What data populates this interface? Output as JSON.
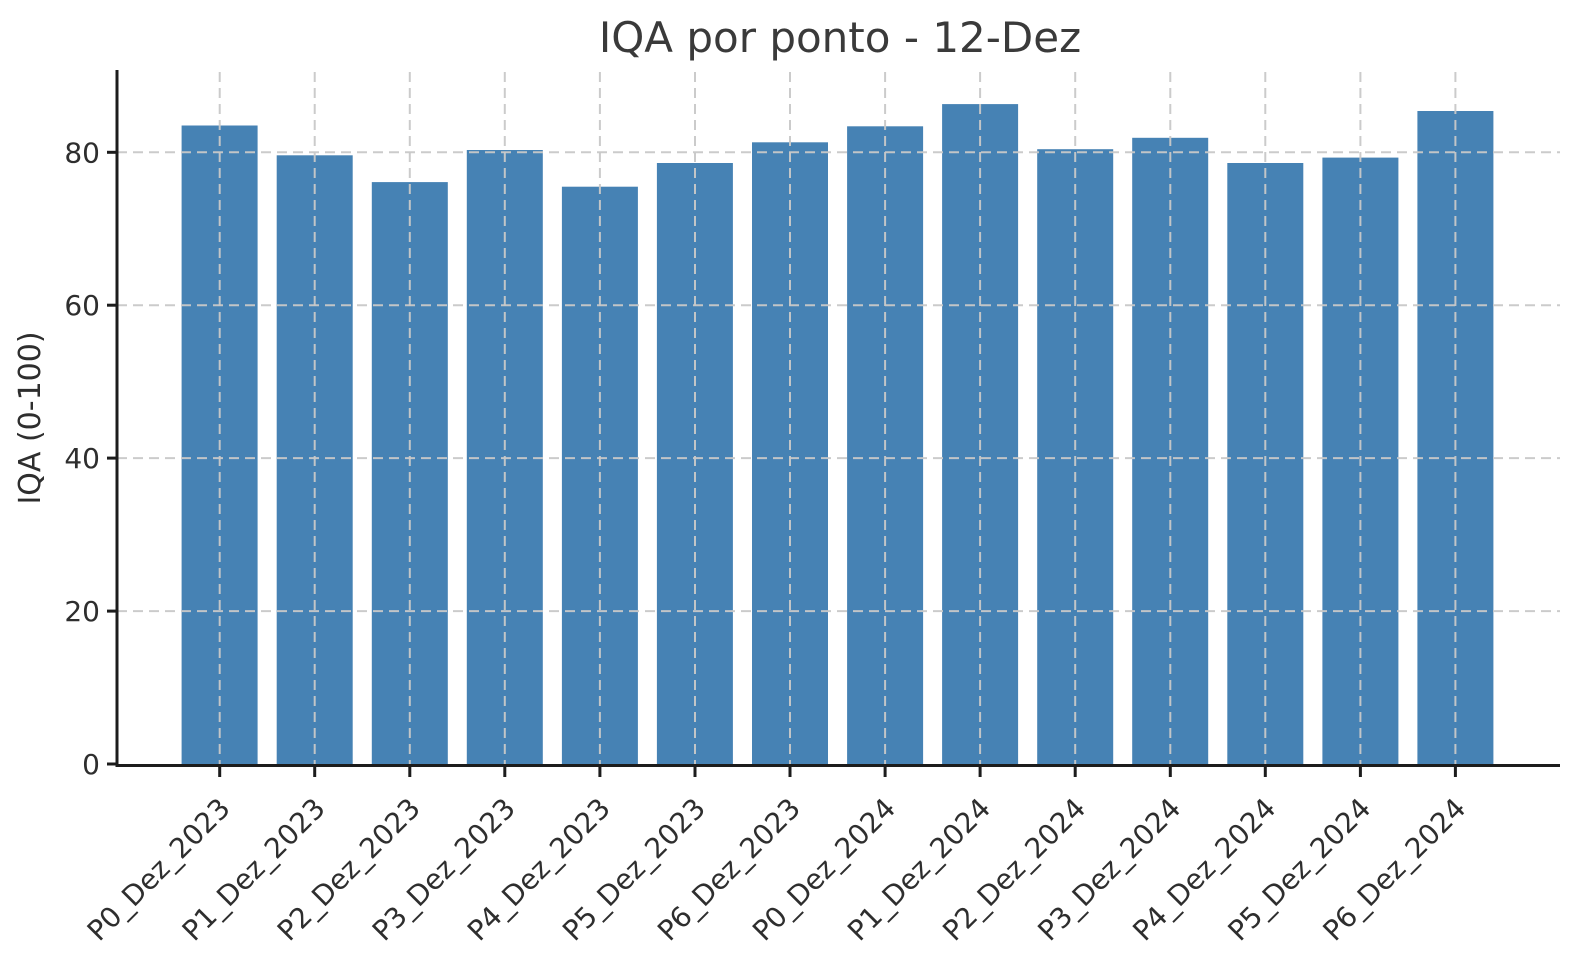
{
  "chart_data": {
    "type": "bar",
    "title": "IQA por ponto - 12-Dez",
    "xlabel": "",
    "ylabel": "IQA (0-100)",
    "categories": [
      "P0_Dez_2023",
      "P1_Dez_2023",
      "P2_Dez_2023",
      "P3_Dez_2023",
      "P4_Dez_2023",
      "P5_Dez_2023",
      "P6_Dez_2023",
      "P0_Dez_2024",
      "P1_Dez_2024",
      "P2_Dez_2024",
      "P3_Dez_2024",
      "P4_Dez_2024",
      "P5_Dez_2024",
      "P6_Dez_2024"
    ],
    "values": [
      83.5,
      79.6,
      76.1,
      80.3,
      75.5,
      78.6,
      81.3,
      83.4,
      86.3,
      80.4,
      81.9,
      78.6,
      79.3,
      85.4
    ],
    "ylim": [
      0,
      90.5
    ],
    "yticks": [
      0,
      20,
      40,
      60,
      80
    ],
    "x_tick_rotation_deg": 45,
    "grid": "both, dashed, drawn above bars",
    "legend": "none",
    "colors": {
      "bar": "#4682B4",
      "grid": "#c9c9c9",
      "spine": "#1c1c1c",
      "tick_label": "#2e2e2e",
      "title": "#3a3a3a"
    }
  }
}
